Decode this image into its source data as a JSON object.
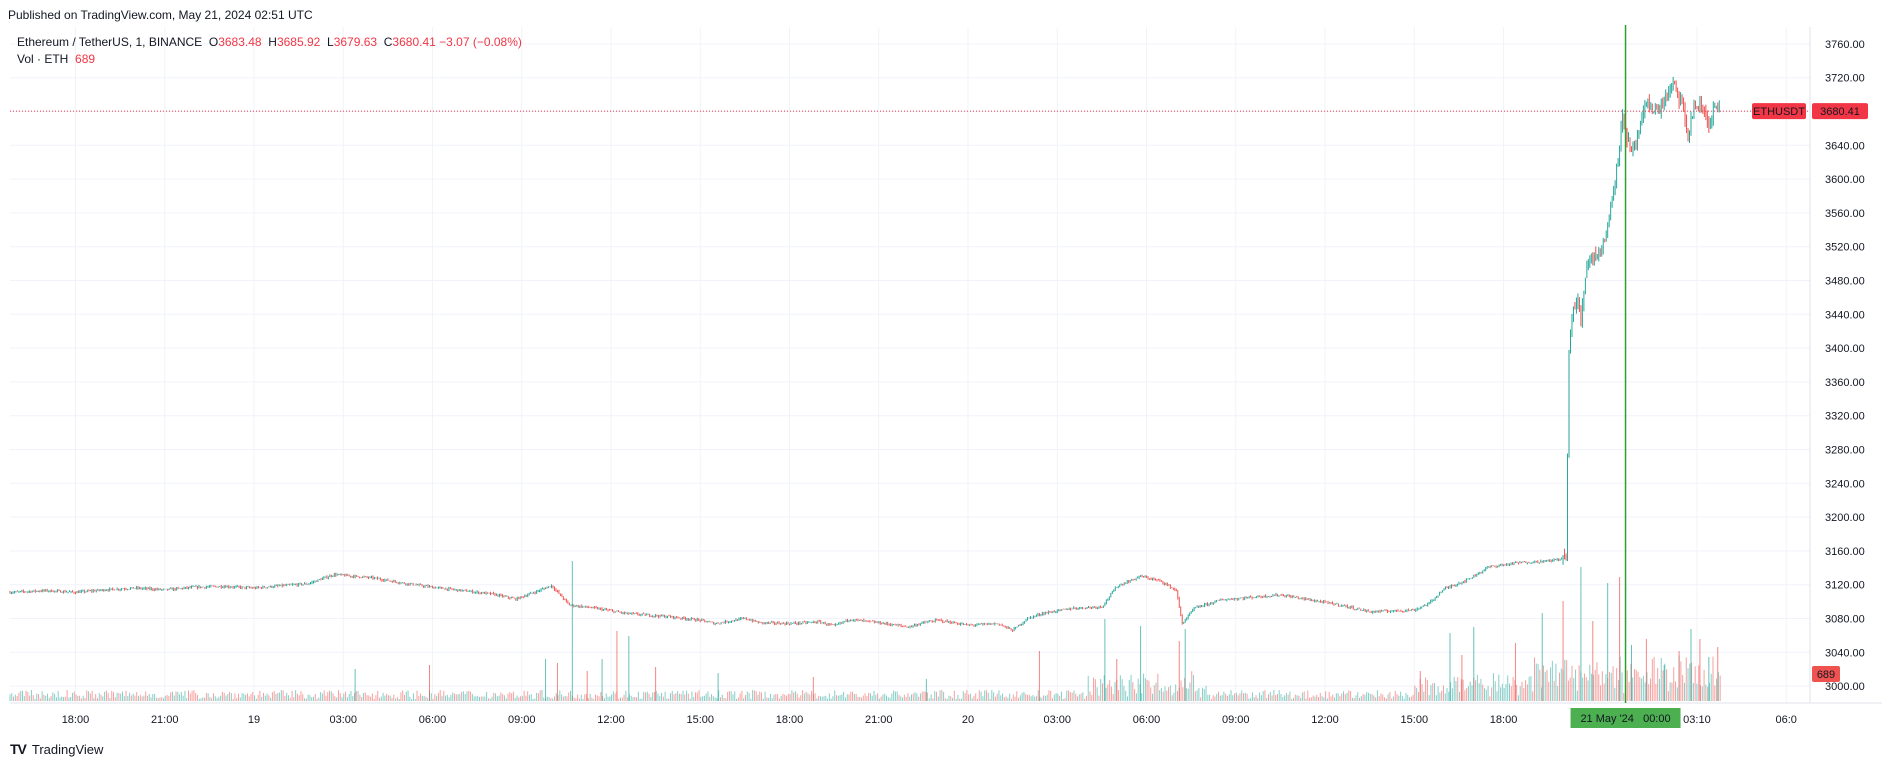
{
  "published": "Published on TradingView.com, May 21, 2024 02:51 UTC",
  "legend": {
    "symbol": "Ethereum / TetherUS, 1, BINANCE",
    "o_label": "O",
    "o": "3683.48",
    "h_label": "H",
    "h": "3685.92",
    "l_label": "L",
    "l": "3679.63",
    "c_label": "C",
    "c": "3680.41",
    "change": "−3.07 (−0.08%)",
    "vol_label": "Vol · ETH",
    "vol": "689"
  },
  "footer": {
    "logo": "TV",
    "brand": "TradingView"
  },
  "colors": {
    "up": "#26a69a",
    "down": "#ef5350",
    "crosshair": "#2ca02c",
    "price_tag": "#f23645"
  },
  "chart_data": {
    "type": "candlestick",
    "symbol": "ETHUSDT",
    "interval": "1",
    "last_price": 3680.41,
    "last_price_label": "3680.41",
    "last_price_tag": "ETHUSDT",
    "volume_label": "689",
    "y_ticks": [
      3000,
      3040,
      3080,
      3120,
      3160,
      3200,
      3240,
      3280,
      3320,
      3360,
      3400,
      3440,
      3480,
      3520,
      3560,
      3600,
      3640,
      3680,
      3720,
      3760
    ],
    "y_tick_labels": [
      "3000.00",
      "3040.00",
      "3080.00",
      "3120.00",
      "3160.00",
      "3200.00",
      "3240.00",
      "3280.00",
      "3320.00",
      "3360.00",
      "3400.00",
      "3440.00",
      "3480.00",
      "3520.00",
      "3560.00",
      "3600.00",
      "3640.00",
      "3680.00",
      "3720.00",
      "3760.00"
    ],
    "ylim": [
      2980,
      3780
    ],
    "x_range_hours": [
      -32.2,
      28.3
    ],
    "x_ticks": [
      {
        "t": -30,
        "label": "18:00"
      },
      {
        "t": -27,
        "label": "21:00"
      },
      {
        "t": -24,
        "label": "19"
      },
      {
        "t": -21,
        "label": "03:00"
      },
      {
        "t": -18,
        "label": "06:00"
      },
      {
        "t": -15,
        "label": "09:00"
      },
      {
        "t": -12,
        "label": "12:00"
      },
      {
        "t": -9,
        "label": "15:00"
      },
      {
        "t": -6,
        "label": "18:00"
      },
      {
        "t": -3,
        "label": "21:00"
      },
      {
        "t": 0,
        "label": "20"
      },
      {
        "t": 3,
        "label": "03:00"
      },
      {
        "t": 6,
        "label": "06:00"
      },
      {
        "t": 9,
        "label": "09:00"
      },
      {
        "t": 12,
        "label": "12:00"
      },
      {
        "t": 15,
        "label": "15:00"
      },
      {
        "t": 18,
        "label": "18:00"
      },
      {
        "t": 24.5,
        "label": "03:10"
      },
      {
        "t": 27.5,
        "label": "06:0"
      }
    ],
    "crosshair_t": 22.1,
    "crosshair_label": "21 May '24   00:00",
    "price_path": [
      [
        -32.2,
        3111
      ],
      [
        -31,
        3113
      ],
      [
        -30,
        3111
      ],
      [
        -29,
        3114
      ],
      [
        -28,
        3116
      ],
      [
        -27,
        3114
      ],
      [
        -26,
        3117
      ],
      [
        -25,
        3118
      ],
      [
        -24,
        3116
      ],
      [
        -23,
        3119
      ],
      [
        -22.2,
        3121
      ],
      [
        -21.3,
        3132
      ],
      [
        -20,
        3128
      ],
      [
        -19,
        3122
      ],
      [
        -18,
        3117
      ],
      [
        -17,
        3113
      ],
      [
        -16,
        3109
      ],
      [
        -15.2,
        3103
      ],
      [
        -14.5,
        3112
      ],
      [
        -14,
        3119
      ],
      [
        -13.4,
        3096
      ],
      [
        -12.5,
        3092
      ],
      [
        -11.5,
        3086
      ],
      [
        -10,
        3082
      ],
      [
        -9,
        3078
      ],
      [
        -8.5,
        3074
      ],
      [
        -7.5,
        3080
      ],
      [
        -7,
        3075
      ],
      [
        -6,
        3074
      ],
      [
        -5,
        3076
      ],
      [
        -4.5,
        3071
      ],
      [
        -4,
        3079
      ],
      [
        -3,
        3075
      ],
      [
        -2,
        3070
      ],
      [
        -1.5,
        3075
      ],
      [
        -1,
        3078
      ],
      [
        0,
        3072
      ],
      [
        1,
        3074
      ],
      [
        1.5,
        3066
      ],
      [
        2,
        3080
      ],
      [
        2.5,
        3086
      ],
      [
        3.5,
        3092
      ],
      [
        4.5,
        3094
      ],
      [
        5,
        3118
      ],
      [
        5.8,
        3130
      ],
      [
        6.5,
        3124
      ],
      [
        7,
        3113
      ],
      [
        7.2,
        3074
      ],
      [
        7.6,
        3092
      ],
      [
        8.5,
        3102
      ],
      [
        9.5,
        3105
      ],
      [
        10.5,
        3108
      ],
      [
        11.5,
        3102
      ],
      [
        12.5,
        3096
      ],
      [
        13.5,
        3088
      ],
      [
        15,
        3090
      ],
      [
        15.5,
        3098
      ],
      [
        16,
        3115
      ],
      [
        16.8,
        3126
      ],
      [
        17.5,
        3141
      ],
      [
        18.5,
        3146
      ],
      [
        19.5,
        3148
      ],
      [
        20.1,
        3152
      ],
      [
        20.2,
        3392
      ],
      [
        20.3,
        3442
      ],
      [
        20.5,
        3455
      ],
      [
        20.6,
        3432
      ],
      [
        20.8,
        3502
      ],
      [
        21.3,
        3518
      ],
      [
        21.5,
        3542
      ],
      [
        21.8,
        3615
      ],
      [
        22,
        3672
      ],
      [
        22.3,
        3628
      ],
      [
        22.6,
        3660
      ],
      [
        22.8,
        3690
      ],
      [
        23.2,
        3680
      ],
      [
        23.5,
        3700
      ],
      [
        23.7,
        3712
      ],
      [
        24,
        3688
      ],
      [
        24.2,
        3650
      ],
      [
        24.4,
        3686
      ],
      [
        24.7,
        3684
      ],
      [
        24.9,
        3664
      ],
      [
        25.1,
        3686
      ],
      [
        25.3,
        3680
      ]
    ],
    "volume_spikes": [
      [
        -20.6,
        32
      ],
      [
        -18.1,
        36
      ],
      [
        -14.2,
        42
      ],
      [
        -13.8,
        38
      ],
      [
        -13.3,
        140
      ],
      [
        -12.8,
        30
      ],
      [
        -12.3,
        42
      ],
      [
        -11.8,
        70
      ],
      [
        -11.4,
        65
      ],
      [
        -10.5,
        34
      ],
      [
        -8.4,
        28
      ],
      [
        -5.2,
        24
      ],
      [
        -1.4,
        22
      ],
      [
        2.4,
        50
      ],
      [
        4.6,
        82
      ],
      [
        5.0,
        42
      ],
      [
        5.8,
        75
      ],
      [
        7.1,
        60
      ],
      [
        7.3,
        72
      ],
      [
        15.2,
        30
      ],
      [
        16.2,
        68
      ],
      [
        16.6,
        46
      ],
      [
        17.0,
        74
      ],
      [
        18.4,
        58
      ],
      [
        19.3,
        88
      ],
      [
        20.0,
        100
      ],
      [
        20.6,
        134
      ],
      [
        21.0,
        80
      ],
      [
        21.5,
        118
      ],
      [
        21.9,
        124
      ],
      [
        22.3,
        56
      ],
      [
        22.8,
        62
      ],
      [
        23.4,
        36
      ],
      [
        23.9,
        50
      ],
      [
        24.3,
        72
      ],
      [
        24.6,
        62
      ],
      [
        24.9,
        44
      ],
      [
        25.2,
        54
      ]
    ]
  }
}
